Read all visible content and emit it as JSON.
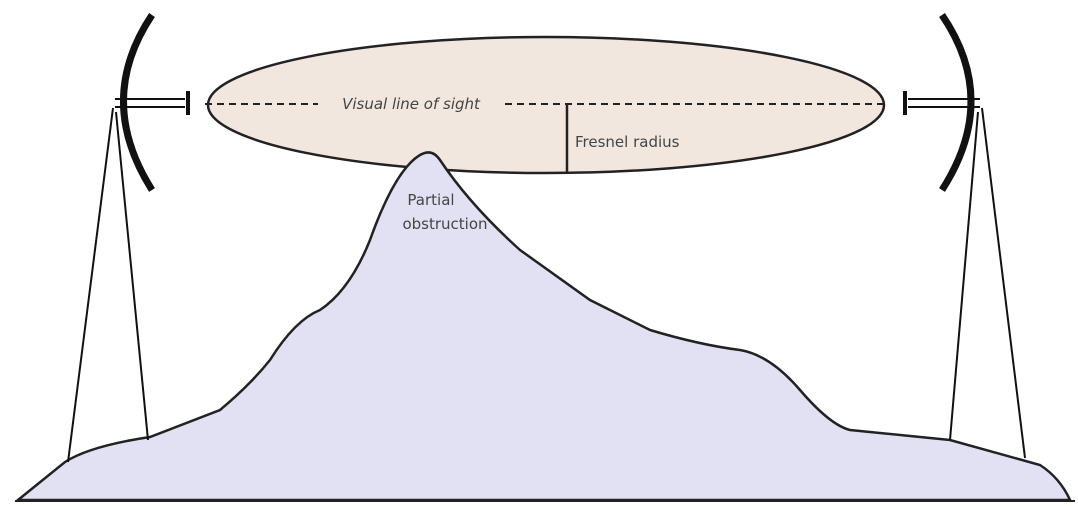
{
  "labels": {
    "line_of_sight": "Visual line of sight",
    "fresnel_radius": "Fresnel radius",
    "obstruction": [
      "Partial",
      "obstruction"
    ]
  }
}
